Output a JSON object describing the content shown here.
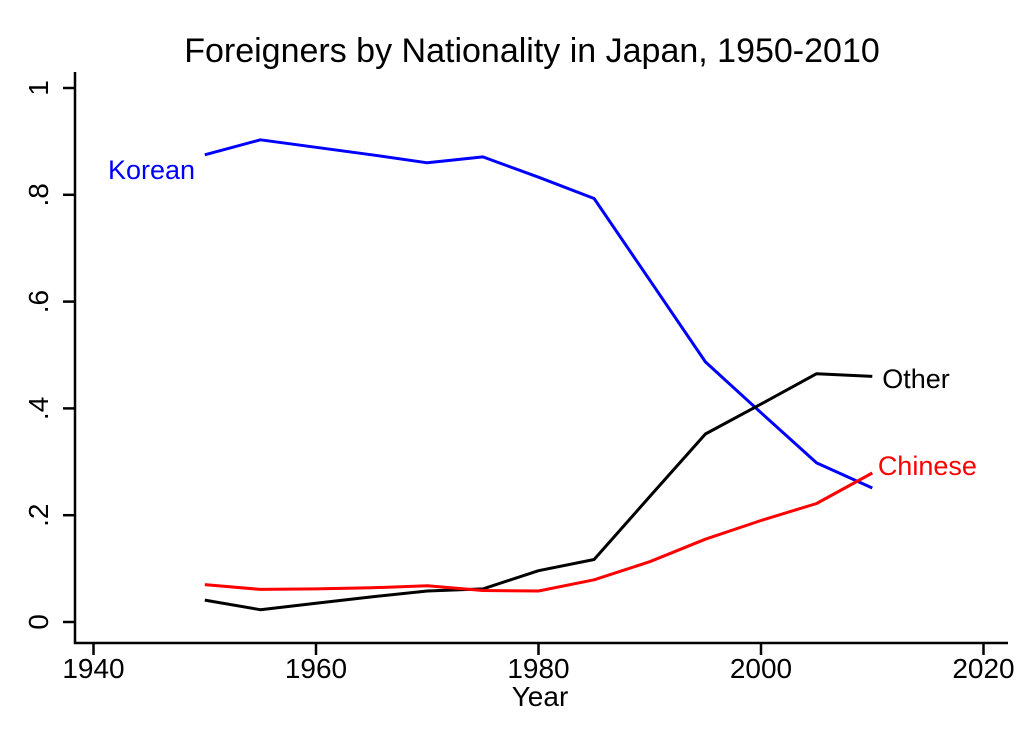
{
  "figure": {
    "background": "#ffffff",
    "text_color": "#000000"
  },
  "chart_data": {
    "type": "line",
    "title": "Foreigners by Nationality in Japan, 1950-2010",
    "xlabel": "Year",
    "ylabel": "",
    "grid": false,
    "legend": "inline-labels-at-line",
    "xlim": [
      1938.3,
      2022.2
    ],
    "ylim": [
      0,
      1
    ],
    "x_ticks": [
      {
        "value": 1940,
        "label": "1940"
      },
      {
        "value": 1960,
        "label": "1960"
      },
      {
        "value": 1980,
        "label": "1980"
      },
      {
        "value": 2000,
        "label": "2000"
      },
      {
        "value": 2020,
        "label": "2020"
      }
    ],
    "y_ticks": [
      {
        "value": 0,
        "label": "0"
      },
      {
        "value": 0.2,
        "label": ".2"
      },
      {
        "value": 0.4,
        "label": ".4"
      },
      {
        "value": 0.6,
        "label": ".6"
      },
      {
        "value": 0.8,
        "label": ".8"
      },
      {
        "value": 1,
        "label": "1"
      }
    ],
    "x": [
      1950,
      1955,
      1960,
      1965,
      1970,
      1975,
      1980,
      1985,
      1990,
      1995,
      2000,
      2005,
      2010
    ],
    "series": [
      {
        "name": "Korean",
        "color": "#0000ff",
        "values": [
          0.875,
          0.903,
          0.889,
          0.875,
          0.86,
          0.871,
          0.833,
          0.793,
          0.64,
          0.487,
          0.392,
          0.298,
          0.251
        ],
        "label": {
          "text": "Korean",
          "x_year": 1941.3,
          "y_value": 0.846,
          "anchor": "start"
        }
      },
      {
        "name": "Other",
        "color": "#000000",
        "values": [
          0.041,
          0.023,
          0.035,
          0.047,
          0.058,
          0.062,
          0.096,
          0.117,
          0.235,
          0.352,
          0.408,
          0.465,
          0.46
        ],
        "label": {
          "text": "Other",
          "x_year": 2010.9,
          "y_value": 0.455,
          "anchor": "start"
        }
      },
      {
        "name": "Chinese",
        "color": "#ff0000",
        "values": [
          0.07,
          0.061,
          0.062,
          0.064,
          0.068,
          0.059,
          0.058,
          0.079,
          0.113,
          0.155,
          0.19,
          0.222,
          0.279
        ],
        "label": {
          "text": "Chinese",
          "x_year": 2010.5,
          "y_value": 0.292,
          "anchor": "start"
        }
      }
    ]
  }
}
